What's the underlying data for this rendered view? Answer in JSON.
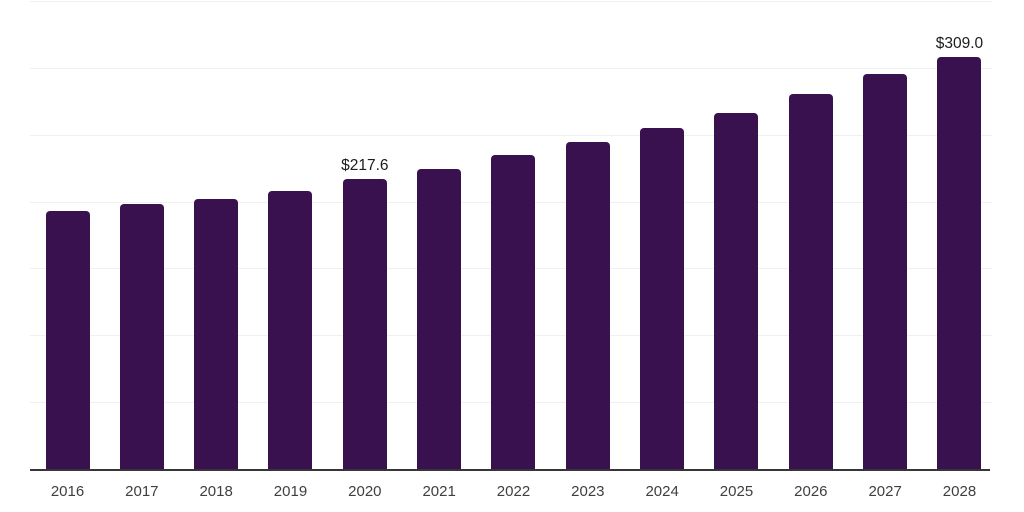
{
  "chart_data": {
    "type": "bar",
    "title": "",
    "xlabel": "",
    "ylabel": "",
    "categories": [
      "2016",
      "2017",
      "2018",
      "2019",
      "2020",
      "2021",
      "2022",
      "2023",
      "2024",
      "2025",
      "2026",
      "2027",
      "2028"
    ],
    "values": [
      194,
      199,
      203,
      209,
      217.6,
      225,
      235.5,
      245.5,
      255.5,
      267,
      281,
      296.5,
      309
    ],
    "value_labels": {
      "4": "$217.6",
      "12": "$309.0"
    },
    "ylim": [
      0,
      350
    ],
    "grid_step": 50,
    "grid": "on",
    "legend": "off",
    "y_tick_labels_shown": false,
    "colors": {
      "bar": "#38114e",
      "gridline": "#f0f0f2",
      "axis_line": "#363636",
      "value_label_text": "#1c1c1c",
      "tick_label_text": "#3f3f3f",
      "background": "#ffffff"
    }
  }
}
